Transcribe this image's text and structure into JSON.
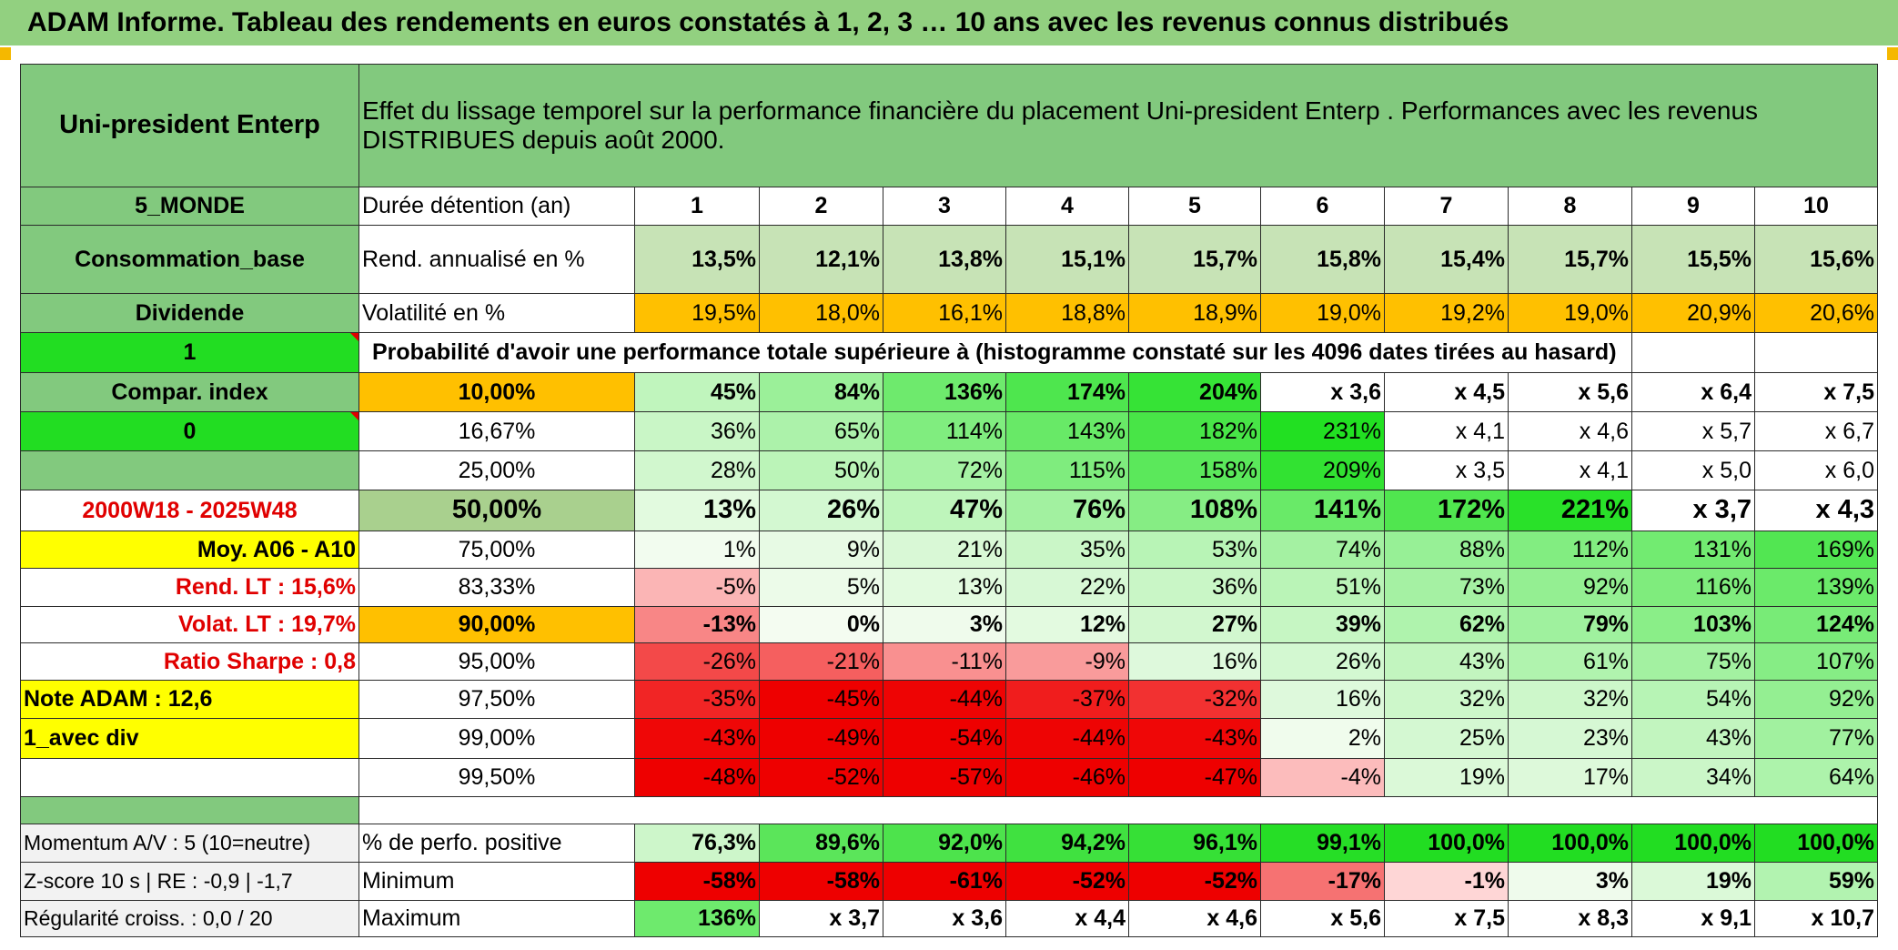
{
  "report": {
    "title": "ADAM Informe. Tableau des rendements en euros constatés à 1, 2, 3 … 10 ans avec les revenus connus distribués"
  },
  "colors": {
    "header_green": "#82c97e",
    "bright_green": "#22dd22",
    "orange": "#ffc000",
    "yellow": "#ffff00",
    "red_text": "#e00000"
  },
  "left_panel": {
    "fund_name": "Uni-president Enterp",
    "zone": "5_MONDE",
    "category": "Consommation_base",
    "dividend_label": "Dividende",
    "one_flag": "1",
    "compar_index": "Compar. index",
    "zero_flag": "0",
    "blank": "",
    "period": "2000W18 - 2025W48",
    "moy_label": "Moy. A06 - A10",
    "rend_lt": "Rend. LT :   15,6%",
    "volat_lt": "Volat. LT :   19,7%",
    "sharpe": "Ratio Sharpe :    0,8",
    "note_adam": "Note ADAM : 12,6",
    "avec_div": "1_avec div",
    "momentum": "Momentum A/V : 5 (10=neutre)",
    "zscore": "Z-score 10 s | RE : -0,9 | -1,7",
    "regularite": "Régularité croiss. : 0,0 / 20"
  },
  "header": {
    "description": "Effet du lissage temporel sur la performance financière du placement Uni-president Enterp . Performances avec les revenus DISTRIBUES depuis août 2000.",
    "duration_label": "Durée détention (an)",
    "years": [
      "1",
      "2",
      "3",
      "4",
      "5",
      "6",
      "7",
      "8",
      "9",
      "10"
    ]
  },
  "stats": {
    "rend_label": "Rend. annualisé en %",
    "rend": [
      "13,5%",
      "12,1%",
      "13,8%",
      "15,1%",
      "15,7%",
      "15,8%",
      "15,4%",
      "15,7%",
      "15,5%",
      "15,6%"
    ],
    "vol_label": "Volatilité en %",
    "vol": [
      "19,5%",
      "18,0%",
      "16,1%",
      "18,8%",
      "18,9%",
      "19,0%",
      "19,2%",
      "19,0%",
      "20,9%",
      "20,6%"
    ]
  },
  "probability": {
    "title": "Probabilité d'avoir une performance totale supérieure à (histogramme constaté sur les 4096 dates tirées au hasard)",
    "rows": [
      {
        "p": "10,00%",
        "v": [
          "45%",
          "84%",
          "136%",
          "174%",
          "204%",
          "x 3,6",
          "x 4,5",
          "x 5,6",
          "x 6,4",
          "x 7,5"
        ]
      },
      {
        "p": "16,67%",
        "v": [
          "36%",
          "65%",
          "114%",
          "143%",
          "182%",
          "231%",
          "x 4,1",
          "x 4,6",
          "x 5,7",
          "x 6,7"
        ]
      },
      {
        "p": "25,00%",
        "v": [
          "28%",
          "50%",
          "72%",
          "115%",
          "158%",
          "209%",
          "x 3,5",
          "x 4,1",
          "x 5,0",
          "x 6,0"
        ]
      },
      {
        "p": "50,00%",
        "v": [
          "13%",
          "26%",
          "47%",
          "76%",
          "108%",
          "141%",
          "172%",
          "221%",
          "x 3,7",
          "x 4,3"
        ]
      },
      {
        "p": "75,00%",
        "v": [
          "1%",
          "9%",
          "21%",
          "35%",
          "53%",
          "74%",
          "88%",
          "112%",
          "131%",
          "169%"
        ]
      },
      {
        "p": "83,33%",
        "v": [
          "-5%",
          "5%",
          "13%",
          "22%",
          "36%",
          "51%",
          "73%",
          "92%",
          "116%",
          "139%"
        ]
      },
      {
        "p": "90,00%",
        "v": [
          "-13%",
          "0%",
          "3%",
          "12%",
          "27%",
          "39%",
          "62%",
          "79%",
          "103%",
          "124%"
        ]
      },
      {
        "p": "95,00%",
        "v": [
          "-26%",
          "-21%",
          "-11%",
          "-9%",
          "16%",
          "26%",
          "43%",
          "61%",
          "75%",
          "107%"
        ]
      },
      {
        "p": "97,50%",
        "v": [
          "-35%",
          "-45%",
          "-44%",
          "-37%",
          "-32%",
          "16%",
          "32%",
          "32%",
          "54%",
          "92%"
        ]
      },
      {
        "p": "99,00%",
        "v": [
          "-43%",
          "-49%",
          "-54%",
          "-44%",
          "-43%",
          "2%",
          "25%",
          "23%",
          "43%",
          "77%"
        ]
      },
      {
        "p": "99,50%",
        "v": [
          "-48%",
          "-52%",
          "-57%",
          "-46%",
          "-47%",
          "-4%",
          "19%",
          "17%",
          "34%",
          "64%"
        ]
      }
    ]
  },
  "summary": {
    "positive_label": "% de perfo. positive",
    "positive": [
      "76,3%",
      "89,6%",
      "92,0%",
      "94,2%",
      "96,1%",
      "99,1%",
      "100,0%",
      "100,0%",
      "100,0%",
      "100,0%"
    ],
    "min_label": "Minimum",
    "min": [
      "-58%",
      "-58%",
      "-61%",
      "-52%",
      "-52%",
      "-17%",
      "-1%",
      "3%",
      "19%",
      "59%"
    ],
    "max_label": "Maximum",
    "max": [
      "136%",
      "x 3,7",
      "x 3,6",
      "x 4,4",
      "x 4,6",
      "x 5,6",
      "x 7,5",
      "x 8,3",
      "x 9,1",
      "x 10,7"
    ]
  }
}
